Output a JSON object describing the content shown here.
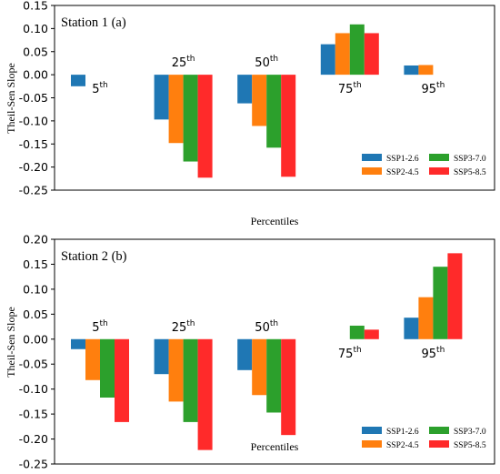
{
  "chart_data": [
    {
      "type": "bar",
      "title": "Station 1 (a)",
      "xlabel": "Percentiles",
      "ylabel": "Theil-Sen Slope",
      "ylim": [
        -0.25,
        0.15
      ],
      "yticks": [
        "0.15",
        "0.10",
        "0.05",
        "0.00",
        "-0.05",
        "-0.10",
        "-0.15",
        "-0.20",
        "-0.25"
      ],
      "categories": [
        "5th",
        "25th",
        "50th",
        "75th",
        "95th"
      ],
      "category_labels": [
        {
          "base": "5",
          "sup": "th",
          "position": "below-zero"
        },
        {
          "base": "25",
          "sup": "th",
          "position": "above-zero"
        },
        {
          "base": "50",
          "sup": "th",
          "position": "above-zero"
        },
        {
          "base": "75",
          "sup": "th",
          "position": "below-zero"
        },
        {
          "base": "95",
          "sup": "th",
          "position": "below-zero"
        }
      ],
      "series": [
        {
          "name": "SSP1-2.6",
          "color": "#1f77b4",
          "values": [
            -0.025,
            -0.097,
            -0.062,
            0.066,
            0.02
          ]
        },
        {
          "name": "SSP2-4.5",
          "color": "#ff7f0e",
          "values": [
            0.0,
            -0.148,
            -0.111,
            0.09,
            0.021
          ]
        },
        {
          "name": "SSP3-7.0",
          "color": "#2ca02c",
          "values": [
            0.0,
            -0.188,
            -0.158,
            0.109,
            0.0
          ]
        },
        {
          "name": "SSP5-8.5",
          "color": "#ff2a2a",
          "values": [
            0.0,
            -0.223,
            -0.221,
            0.09,
            0.0
          ]
        }
      ],
      "legend": "lower-right",
      "grid": false
    },
    {
      "type": "bar",
      "title": "Station 2 (b)",
      "xlabel": "Percentiles",
      "ylabel": "Theil-Sen Slope",
      "ylim": [
        -0.25,
        0.2
      ],
      "yticks": [
        "0.20",
        "0.15",
        "0.10",
        "0.05",
        "0.00",
        "-0.05",
        "-0.10",
        "-0.15",
        "-0.20",
        "-0.25"
      ],
      "categories": [
        "5th",
        "25th",
        "50th",
        "75th",
        "95th"
      ],
      "category_labels": [
        {
          "base": "5",
          "sup": "th",
          "position": "above-zero"
        },
        {
          "base": "25",
          "sup": "th",
          "position": "above-zero"
        },
        {
          "base": "50",
          "sup": "th",
          "position": "above-zero"
        },
        {
          "base": "75",
          "sup": "th",
          "position": "below-zero"
        },
        {
          "base": "95",
          "sup": "th",
          "position": "below-zero"
        }
      ],
      "series": [
        {
          "name": "SSP1-2.6",
          "color": "#1f77b4",
          "values": [
            -0.02,
            -0.07,
            -0.062,
            0.0,
            0.043
          ]
        },
        {
          "name": "SSP2-4.5",
          "color": "#ff7f0e",
          "values": [
            -0.082,
            -0.125,
            -0.112,
            0.0,
            0.084
          ]
        },
        {
          "name": "SSP3-7.0",
          "color": "#2ca02c",
          "values": [
            -0.117,
            -0.166,
            -0.147,
            0.027,
            0.145
          ]
        },
        {
          "name": "SSP5-8.5",
          "color": "#ff2a2a",
          "values": [
            -0.166,
            -0.222,
            -0.192,
            0.019,
            0.172
          ]
        }
      ],
      "legend": "lower-right",
      "grid": false
    }
  ]
}
